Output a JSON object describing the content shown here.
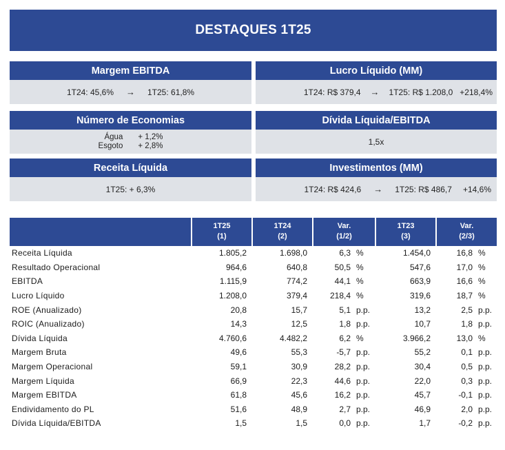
{
  "title": "DESTAQUES 1T25",
  "cards": {
    "margem_ebitda": {
      "title": "Margem EBITDA",
      "left": "1T24: 45,6%",
      "right": "1T25: 61,8%"
    },
    "lucro_liquido": {
      "title": "Lucro Líquido (MM)",
      "left": "1T24: R$ 379,4",
      "right": "1T25: R$ 1.208,0",
      "var": "+218,4%"
    },
    "numero_economias": {
      "title": "Número de Economias",
      "agua_label": "Água",
      "agua_value": "+ 1,2%",
      "esgoto_label": "Esgoto",
      "esgoto_value": "+ 2,8%"
    },
    "divida_ebitda": {
      "title": "Dívida Líquida/EBITDA",
      "value": "1,5x"
    },
    "receita_liquida": {
      "title": "Receita Líquida",
      "value": "1T25: + 6,3%"
    },
    "investimentos": {
      "title": "Investimentos (MM)",
      "left": "1T24: R$ 424,6",
      "right": "1T25: R$ 486,7",
      "var": "+14,6%"
    }
  },
  "arrow_glyph": "→",
  "table": {
    "headers": [
      {
        "line1": "1T25",
        "line2": "(1)"
      },
      {
        "line1": "1T24",
        "line2": "(2)"
      },
      {
        "line1": "Var.",
        "line2": "(1/2)"
      },
      {
        "line1": "1T23",
        "line2": "(3)"
      },
      {
        "line1": "Var.",
        "line2": "(2/3)"
      }
    ],
    "rows": [
      {
        "label": "Receita Líquida",
        "c1": "1.805,2",
        "c2": "1.698,0",
        "v1": "6,3",
        "u1": "%",
        "c3": "1.454,0",
        "v2": "16,8",
        "u2": "%"
      },
      {
        "label": "Resultado Operacional",
        "c1": "964,6",
        "c2": "640,8",
        "v1": "50,5",
        "u1": "%",
        "c3": "547,6",
        "v2": "17,0",
        "u2": "%"
      },
      {
        "label": "EBITDA",
        "c1": "1.115,9",
        "c2": "774,2",
        "v1": "44,1",
        "u1": "%",
        "c3": "663,9",
        "v2": "16,6",
        "u2": "%"
      },
      {
        "label": "Lucro Líquido",
        "c1": "1.208,0",
        "c2": "379,4",
        "v1": "218,4",
        "u1": "%",
        "c3": "319,6",
        "v2": "18,7",
        "u2": "%"
      },
      {
        "label": "ROE (Anualizado)",
        "c1": "20,8",
        "c2": "15,7",
        "v1": "5,1",
        "u1": "p.p.",
        "c3": "13,2",
        "v2": "2,5",
        "u2": "p.p."
      },
      {
        "label": "ROIC (Anualizado)",
        "c1": "14,3",
        "c2": "12,5",
        "v1": "1,8",
        "u1": "p.p.",
        "c3": "10,7",
        "v2": "1,8",
        "u2": "p.p."
      },
      {
        "label": "Dívida Líquida",
        "c1": "4.760,6",
        "c2": "4.482,2",
        "v1": "6,2",
        "u1": "%",
        "c3": "3.966,2",
        "v2": "13,0",
        "u2": "%"
      },
      {
        "label": "Margem Bruta",
        "c1": "49,6",
        "c2": "55,3",
        "v1": "-5,7",
        "u1": "p.p.",
        "c3": "55,2",
        "v2": "0,1",
        "u2": "p.p."
      },
      {
        "label": "Margem Operacional",
        "c1": "59,1",
        "c2": "30,9",
        "v1": "28,2",
        "u1": "p.p.",
        "c3": "30,4",
        "v2": "0,5",
        "u2": "p.p."
      },
      {
        "label": "Margem Líquida",
        "c1": "66,9",
        "c2": "22,3",
        "v1": "44,6",
        "u1": "p.p.",
        "c3": "22,0",
        "v2": "0,3",
        "u2": "p.p."
      },
      {
        "label": "Margem EBITDA",
        "c1": "61,8",
        "c2": "45,6",
        "v1": "16,2",
        "u1": "p.p.",
        "c3": "45,7",
        "v2": "-0,1",
        "u2": "p.p."
      },
      {
        "label": "Endividamento do PL",
        "c1": "51,6",
        "c2": "48,9",
        "v1": "2,7",
        "u1": "p.p.",
        "c3": "46,9",
        "v2": "2,0",
        "u2": "p.p."
      },
      {
        "label": "Dívida Líquida/EBITDA",
        "c1": "1,5",
        "c2": "1,5",
        "v1": "0,0",
        "u1": "p.p.",
        "c3": "1,7",
        "v2": "-0,2",
        "u2": "p.p."
      }
    ]
  }
}
